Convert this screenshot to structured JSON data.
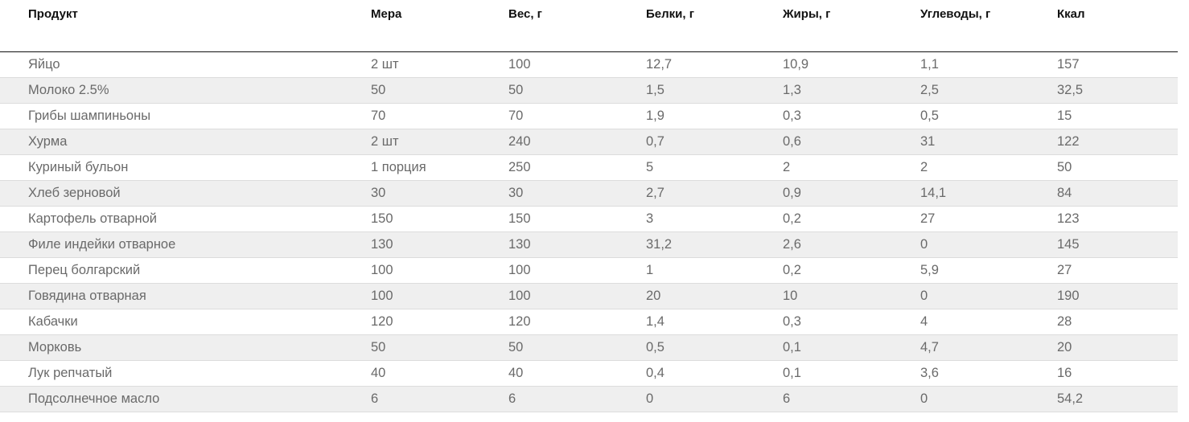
{
  "table": {
    "headers": [
      "Продукт",
      "Мера",
      "Вес, г",
      "Белки, г",
      "Жиры, г",
      "Углеводы, г",
      "Ккал"
    ],
    "rows": [
      [
        "Яйцо",
        "2 шт",
        "100",
        "12,7",
        "10,9",
        "1,1",
        "157"
      ],
      [
        "Молоко 2.5%",
        "50",
        "50",
        "1,5",
        "1,3",
        "2,5",
        "32,5"
      ],
      [
        "Грибы шампиньоны",
        "70",
        "70",
        "1,9",
        "0,3",
        "0,5",
        "15"
      ],
      [
        "Хурма",
        "2 шт",
        "240",
        "0,7",
        "0,6",
        "31",
        "122"
      ],
      [
        "Куриный бульон",
        "1 порция",
        "250",
        "5",
        "2",
        "2",
        "50"
      ],
      [
        "Хлеб зерновой",
        "30",
        "30",
        "2,7",
        "0,9",
        "14,1",
        "84"
      ],
      [
        "Картофель отварной",
        "150",
        "150",
        "3",
        "0,2",
        "27",
        "123"
      ],
      [
        "Филе индейки отварное",
        "130",
        "130",
        "31,2",
        "2,6",
        "0",
        "145"
      ],
      [
        "Перец болгарский",
        "100",
        "100",
        "1",
        "0,2",
        "5,9",
        "27"
      ],
      [
        "Говядина отварная",
        "100",
        "100",
        "20",
        "10",
        "0",
        "190"
      ],
      [
        "Кабачки",
        "120",
        "120",
        "1,4",
        "0,3",
        "4",
        "28"
      ],
      [
        "Морковь",
        "50",
        "50",
        "0,5",
        "0,1",
        "4,7",
        "20"
      ],
      [
        "Лук репчатый",
        "40",
        "40",
        "0,4",
        "0,1",
        "3,6",
        "16"
      ],
      [
        "Подсолнечное масло",
        "6",
        "6",
        "0",
        "6",
        "0",
        "54,2"
      ]
    ]
  }
}
